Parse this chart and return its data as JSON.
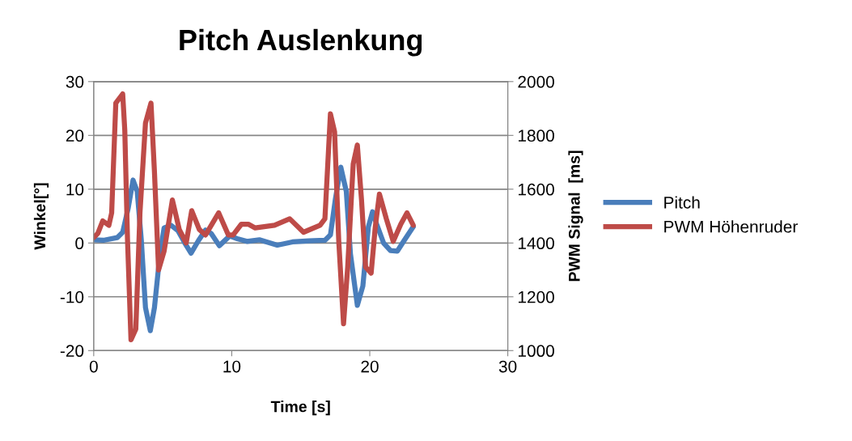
{
  "chart_data": {
    "type": "line",
    "title": "Pitch Auslenkung",
    "xlabel": "Time [s]",
    "ylabel": "Winkel[°]",
    "y2label": "PWM Signal  [ms]",
    "xlim": [
      0,
      30
    ],
    "xticks": [
      0,
      10,
      20,
      30
    ],
    "ylim": [
      -20,
      30
    ],
    "yticks": [
      -20,
      -10,
      0,
      10,
      20,
      30
    ],
    "y2lim": [
      1000,
      2000
    ],
    "y2ticks": [
      1000,
      1200,
      1400,
      1600,
      1800,
      2000
    ],
    "grid": "y",
    "legend": "right",
    "marker": "none",
    "line_style": "solid",
    "series": [
      {
        "name": "Pitch",
        "color": "#4a7ebb",
        "x": [
          0,
          0.7,
          1.7,
          2.1,
          2.5,
          2.85,
          3.15,
          3.45,
          3.75,
          4.1,
          4.4,
          4.8,
          5.1,
          5.6,
          6.1,
          6.6,
          7.05,
          7.6,
          8.1,
          8.5,
          9.1,
          9.85,
          10.4,
          11.1,
          12,
          13.3,
          14.4,
          15.6,
          16.75,
          17.15,
          17.5,
          17.9,
          18.3,
          18.6,
          19.1,
          19.5,
          19.9,
          20.2,
          20.5,
          21,
          21.5,
          22,
          22.5,
          23.15
        ],
        "values": [
          0.6,
          0.5,
          1,
          2,
          6.5,
          11.7,
          9.6,
          0.5,
          -12,
          -16.3,
          -12,
          -2,
          2.8,
          3.3,
          2.3,
          0,
          -1.9,
          0.5,
          2.4,
          1.8,
          -0.5,
          1.3,
          0.8,
          0.3,
          0.6,
          -0.4,
          0.2,
          0.4,
          0.5,
          1.5,
          8,
          14.1,
          9.6,
          -2,
          -11.6,
          -8,
          3,
          5.8,
          3.5,
          0,
          -1.4,
          -1.5,
          0.5,
          3
        ]
      },
      {
        "name": "PWM Höhenruder",
        "color": "#be4b48",
        "axis": "y2",
        "x": [
          0,
          0.3,
          0.65,
          1.1,
          1.3,
          1.6,
          2.1,
          2.25,
          2.45,
          2.7,
          3.05,
          3.35,
          3.75,
          4.15,
          4.4,
          4.7,
          5.1,
          5.7,
          6.2,
          6.7,
          7.1,
          7.65,
          8.1,
          9.05,
          9.75,
          10.1,
          10.7,
          11.2,
          11.7,
          13.1,
          14.2,
          15.2,
          16.4,
          16.75,
          17.15,
          17.45,
          17.75,
          18.1,
          18.4,
          18.8,
          19.1,
          19.4,
          19.7,
          20.1,
          20.4,
          20.7,
          21.2,
          21.7,
          22.25,
          22.7,
          23.15
        ],
        "values": [
          1420,
          1436,
          1482,
          1466,
          1512,
          1920,
          1954,
          1820,
          1410,
          1040,
          1080,
          1512,
          1846,
          1920,
          1664,
          1300,
          1370,
          1560,
          1450,
          1400,
          1520,
          1450,
          1430,
          1512,
          1430,
          1430,
          1470,
          1470,
          1456,
          1466,
          1490,
          1440,
          1466,
          1490,
          1880,
          1814,
          1410,
          1100,
          1310,
          1694,
          1764,
          1562,
          1310,
          1288,
          1460,
          1582,
          1490,
          1406,
          1470,
          1512,
          1466
        ]
      }
    ]
  }
}
